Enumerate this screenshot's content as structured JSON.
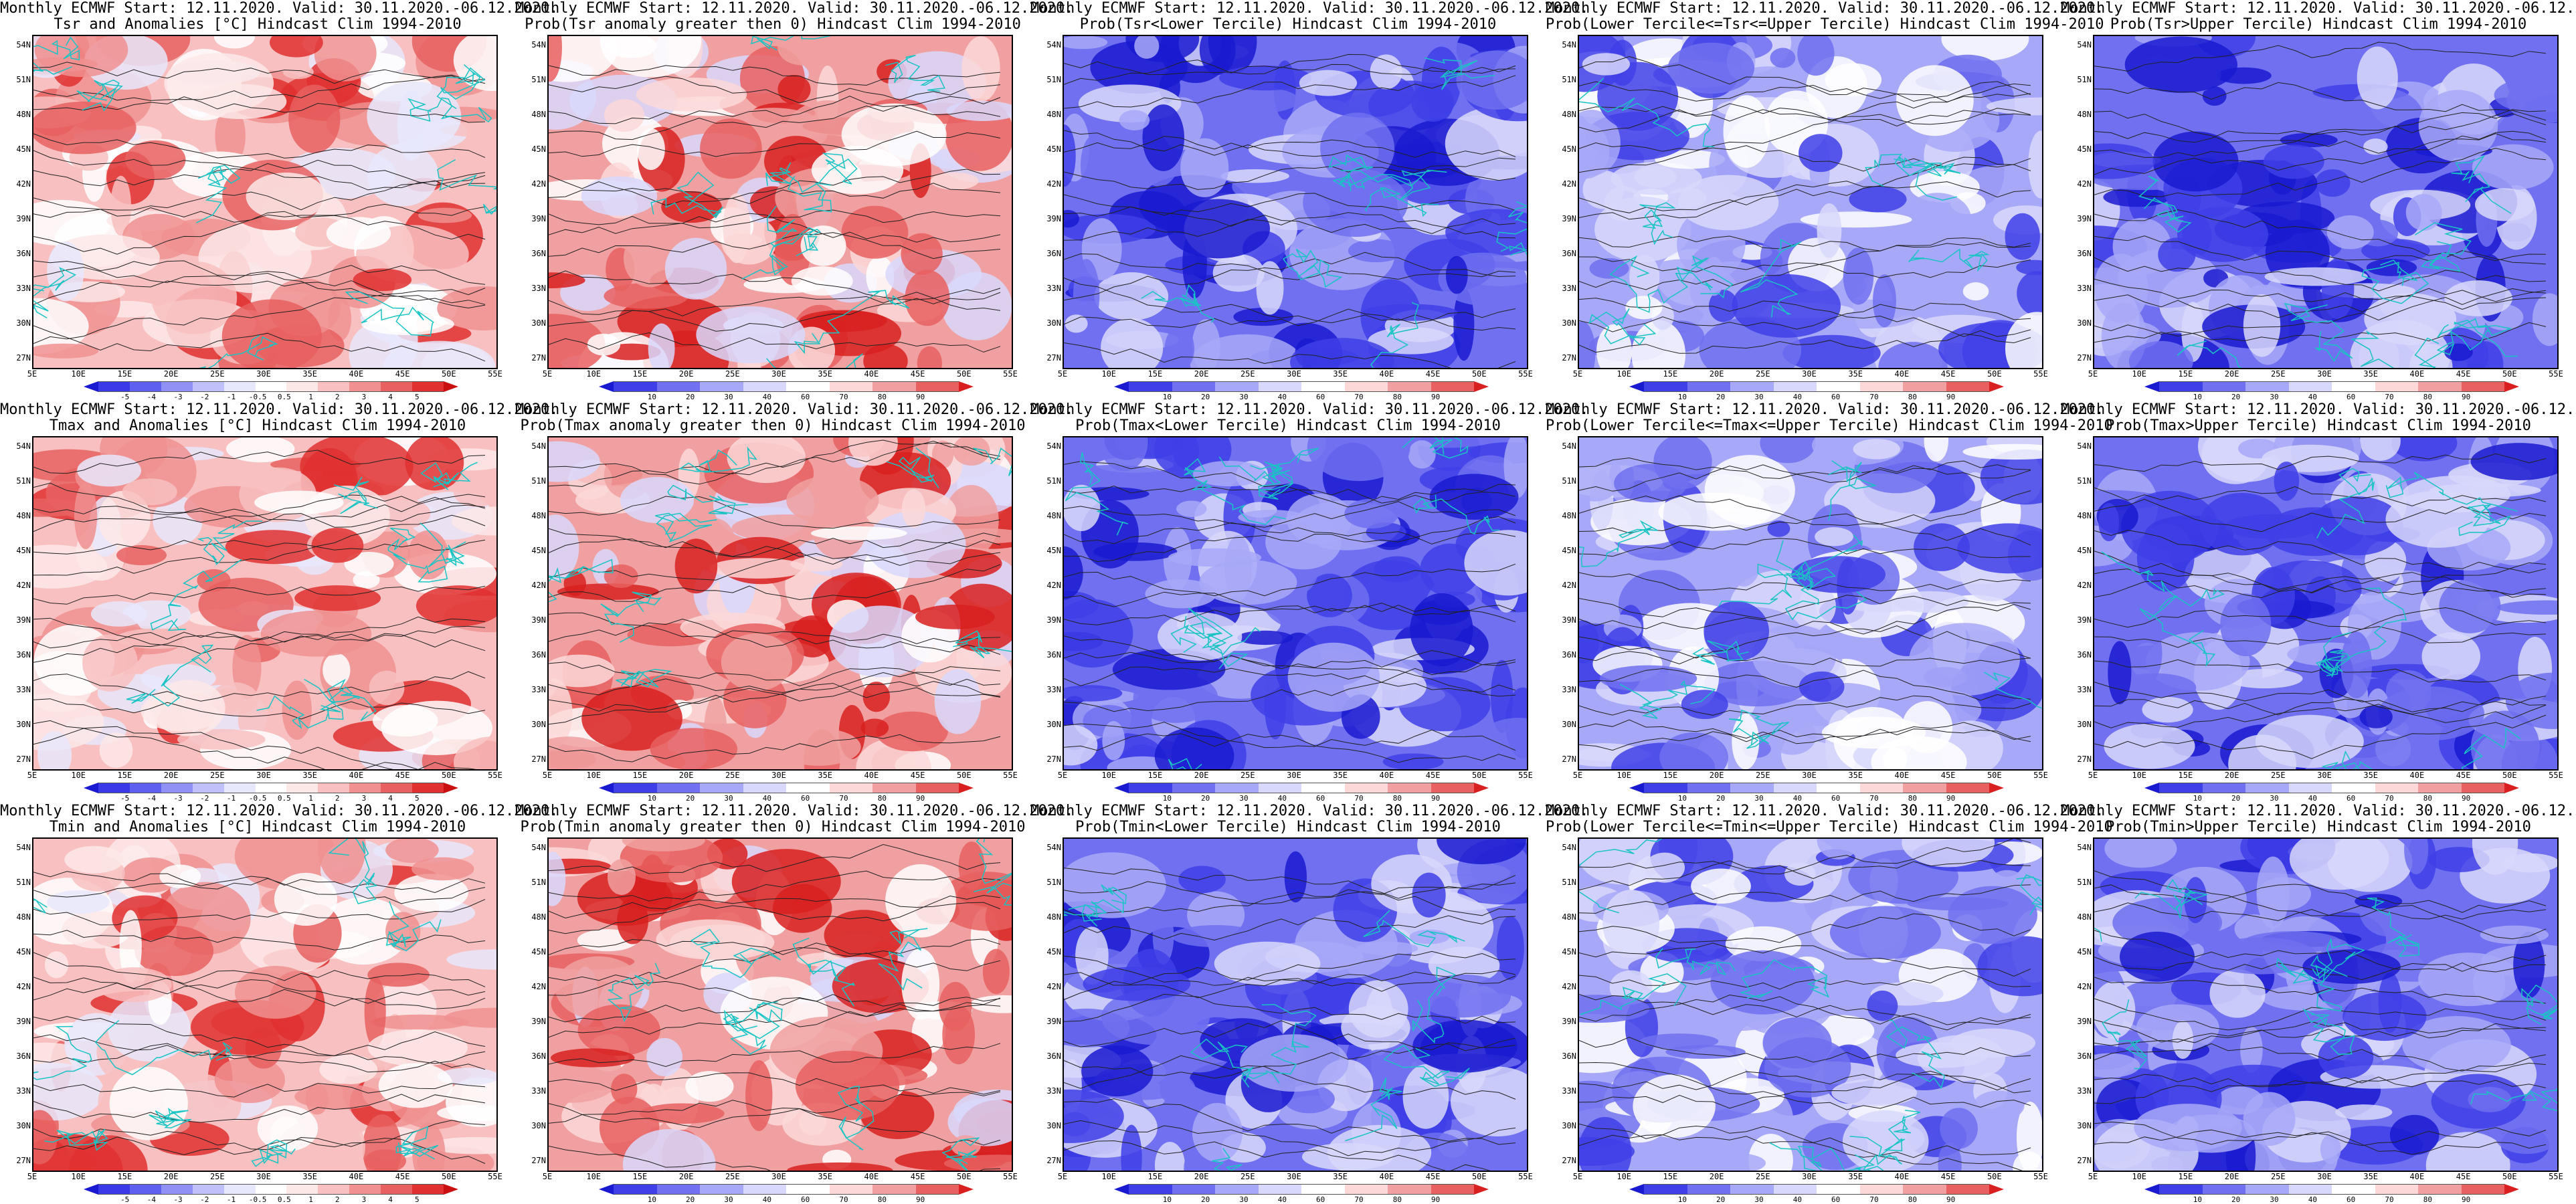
{
  "header": "Monthly ECMWF Start: 12.11.2020. Valid: 30.11.2020.-06.12.2020.",
  "rows": [
    [
      "Tsr and Anomalies [°C] Hindcast Clim 1994-2010",
      "Prob(Tsr anomaly greater then 0) Hindcast Clim 1994-2010",
      "Prob(Tsr<Lower Tercile) Hindcast Clim 1994-2010",
      "Prob(Lower Tercile<=Tsr<=Upper Tercile) Hindcast Clim 1994-2010",
      "Prob(Tsr>Upper Tercile) Hindcast Clim 1994-2010"
    ],
    [
      "Tmax and Anomalies [°C] Hindcast Clim 1994-2010",
      "Prob(Tmax anomaly greater then 0) Hindcast Clim 1994-2010",
      "Prob(Tmax<Lower Tercile) Hindcast Clim 1994-2010",
      "Prob(Lower Tercile<=Tmax<=Upper Tercile) Hindcast Clim 1994-2010",
      "Prob(Tmax>Upper Tercile) Hindcast Clim 1994-2010"
    ],
    [
      "Tmin and Anomalies [°C] Hindcast Clim 1994-2010",
      "Prob(Tmin anomaly greater then 0) Hindcast Clim 1994-2010",
      "Prob(Tmin<Lower Tercile) Hindcast Clim 1994-2010",
      "Prob(Lower Tercile<=Tmin<=Upper Tercile) Hindcast Clim 1994-2010",
      "Prob(Tmin>Upper Tercile) Hindcast Clim 1994-2010"
    ]
  ],
  "lat_labels": [
    "54N",
    "51N",
    "48N",
    "45N",
    "42N",
    "39N",
    "36N",
    "33N",
    "30N",
    "27N"
  ],
  "lon_labels": [
    "5E",
    "10E",
    "15E",
    "20E",
    "25E",
    "30E",
    "35E",
    "40E",
    "45E",
    "50E",
    "55E"
  ],
  "anom_ticks": [
    "-5",
    "-4",
    "-3",
    "-2",
    "-1",
    "-0.5",
    "0.5",
    "1",
    "2",
    "3",
    "4",
    "5"
  ],
  "prob_ticks": [
    "10",
    "20",
    "30",
    "40",
    "60",
    "70",
    "80",
    "90"
  ],
  "palette": {
    "anomaly": [
      "#1a1ad0",
      "#3a3ae8",
      "#6060f0",
      "#9090f5",
      "#c0c0fa",
      "#e8e8fc",
      "#ffffff",
      "#fde8e8",
      "#f8c0c0",
      "#f09090",
      "#e86060",
      "#e03030",
      "#c81010"
    ],
    "probability": [
      "#1a1ad0",
      "#4040e8",
      "#7070f0",
      "#a8a8f8",
      "#d8d8fc",
      "#ffffff",
      "#fcd8d8",
      "#f0a0a0",
      "#e86060",
      "#d82020"
    ],
    "coast": "#19c4c4",
    "contour": "#222222"
  },
  "dominant": [
    [
      "anom-warm",
      "prob-warm",
      "prob-cold",
      "prob-mid",
      "prob-cold"
    ],
    [
      "anom-warm",
      "prob-warm",
      "prob-cold",
      "prob-mid",
      "prob-cold"
    ],
    [
      "anom-warm",
      "prob-warm",
      "prob-cold",
      "prob-mid",
      "prob-cold"
    ]
  ]
}
